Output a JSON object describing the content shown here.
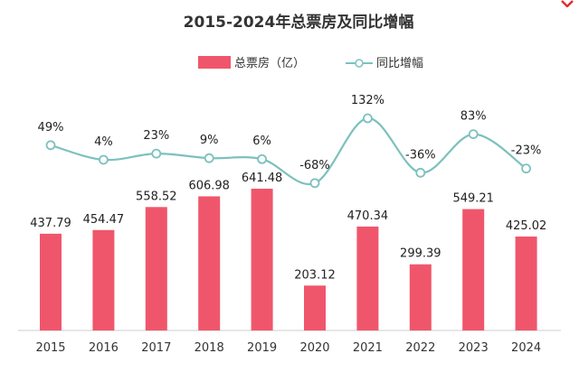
{
  "chart_data": {
    "type": "bar",
    "title": "2015-2024年总票房及同比增幅",
    "categories": [
      "2015",
      "2016",
      "2017",
      "2018",
      "2019",
      "2020",
      "2021",
      "2022",
      "2023",
      "2024"
    ],
    "series": [
      {
        "name": "总票房（亿）",
        "type": "bar",
        "color": "#F0566B",
        "values": [
          437.79,
          454.47,
          558.52,
          606.98,
          641.48,
          203.12,
          470.34,
          299.39,
          549.21,
          425.02
        ],
        "labels": [
          "437.79",
          "454.47",
          "558.52",
          "606.98",
          "641.48",
          "203.12",
          "470.34",
          "299.39",
          "549.21",
          "425.02"
        ]
      },
      {
        "name": "同比增幅",
        "type": "line",
        "color": "#7CC1BE",
        "values": [
          49,
          4,
          23,
          9,
          6,
          -68,
          132,
          -36,
          83,
          -23
        ],
        "labels": [
          "49%",
          "4%",
          "23%",
          "9%",
          "6%",
          "-68%",
          "132%",
          "-36%",
          "83%",
          "-23%"
        ]
      }
    ],
    "legend_position": "top-center",
    "grid": false
  },
  "colors": {
    "bar": "#F0566B",
    "line": "#7CC1BE",
    "axis": "#cccccc",
    "corner_mark": "#e03030"
  }
}
